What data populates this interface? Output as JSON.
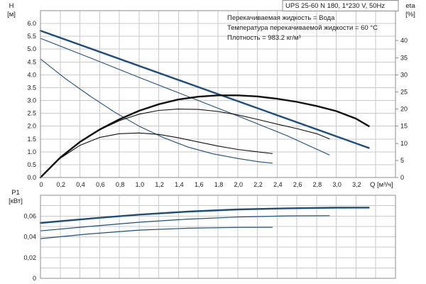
{
  "colors": {
    "head": "#1f4e79",
    "eta": "#111111",
    "power": "#1f4e79",
    "grid": "#c9c9c9",
    "frame": "#8c8c8c"
  },
  "title": "UPS 25-60 N 180, 1*230 V, 50Hz",
  "info_lines": [
    "Перекачиваемая жидкость = Вода",
    "Температура перекачиваемой жидкости = 60 °C",
    "Плотность = 983.2 кг/м³"
  ],
  "chart_data": [
    {
      "type": "line",
      "y_label_line1": "H",
      "y_label_line2": "[м]",
      "y2_label_line1": "eta",
      "y2_label_line2": "[%]",
      "x_label": "Q [м³/ч]",
      "xlim": [
        0,
        3.6
      ],
      "ylim": [
        0,
        6.5
      ],
      "y2lim": [
        0,
        48.75
      ],
      "x_ticks": [
        "0",
        "0,2",
        "0,4",
        "0,6",
        "0,8",
        "1,0",
        "1,2",
        "1,4",
        "1,6",
        "1,8",
        "2,0",
        "2,2",
        "2,4",
        "2,6",
        "2,8",
        "3,0",
        "3,2"
      ],
      "y_ticks": [
        "0.0",
        "0.5",
        "1.0",
        "1.5",
        "2.0",
        "2.5",
        "3.0",
        "3.5",
        "4.0",
        "4.5",
        "5.0",
        "5.5",
        "6.0"
      ],
      "y2_ticks": [
        "0",
        "5",
        "10",
        "15",
        "20",
        "25",
        "30",
        "35",
        "40"
      ],
      "grid": true,
      "head_series": [
        {
          "x": [
            0,
            3.33
          ],
          "y": [
            5.72,
            1.15
          ]
        },
        {
          "x": [
            0,
            0.5,
            1.0,
            1.5,
            2.0,
            2.5,
            2.93
          ],
          "y": [
            5.42,
            4.67,
            3.9,
            3.15,
            2.4,
            1.63,
            0.88
          ]
        },
        {
          "x": [
            0,
            0.25,
            0.5,
            0.75,
            1.0,
            1.25,
            1.5,
            1.75,
            2.0,
            2.2,
            2.35
          ],
          "y": [
            4.62,
            3.86,
            3.18,
            2.55,
            2.0,
            1.55,
            1.18,
            0.92,
            0.74,
            0.62,
            0.56
          ]
        }
      ],
      "eta_series": [
        {
          "x": [
            0,
            0.2,
            0.4,
            0.6,
            0.8,
            1.0,
            1.2,
            1.4,
            1.6,
            1.8,
            2.0,
            2.2,
            2.4,
            2.6,
            2.8,
            3.0,
            3.2,
            3.33
          ],
          "y": [
            0,
            5.8,
            10.4,
            14.0,
            17.0,
            19.5,
            21.4,
            22.8,
            23.6,
            24.0,
            24.0,
            23.7,
            23.0,
            22.1,
            20.9,
            19.4,
            17.2,
            15.0
          ]
        },
        {
          "x": [
            0,
            0.2,
            0.4,
            0.6,
            0.8,
            1.0,
            1.2,
            1.4,
            1.6,
            1.8,
            2.0,
            2.2,
            2.4,
            2.6,
            2.8,
            2.93
          ],
          "y": [
            0,
            5.9,
            10.4,
            13.9,
            16.6,
            18.5,
            19.6,
            20.0,
            19.9,
            19.3,
            18.3,
            17.0,
            15.6,
            14.3,
            12.8,
            11.3
          ]
        },
        {
          "x": [
            0,
            0.2,
            0.4,
            0.6,
            0.8,
            1.0,
            1.2,
            1.4,
            1.6,
            1.8,
            2.0,
            2.2,
            2.35
          ],
          "y": [
            0,
            5.6,
            9.4,
            11.7,
            12.8,
            13.0,
            12.6,
            11.6,
            10.4,
            9.2,
            8.2,
            7.5,
            7.0
          ]
        }
      ]
    },
    {
      "type": "line",
      "y_label_line1": "P1",
      "y_label_line2": "[кВт]",
      "xlim": [
        0,
        3.6
      ],
      "ylim": [
        0,
        0.08
      ],
      "y_ticks": [
        "0,06",
        "0,04",
        "0,02",
        "0"
      ],
      "grid": true,
      "series": [
        {
          "x": [
            0,
            0.5,
            1.0,
            1.5,
            2.0,
            2.5,
            3.0,
            3.33
          ],
          "y": [
            0.0533,
            0.0575,
            0.0613,
            0.0643,
            0.0663,
            0.0674,
            0.068,
            0.0681
          ]
        },
        {
          "x": [
            0,
            0.5,
            1.0,
            1.5,
            2.0,
            2.5,
            2.93
          ],
          "y": [
            0.0457,
            0.05,
            0.054,
            0.057,
            0.059,
            0.0601,
            0.0603
          ]
        },
        {
          "x": [
            0,
            0.5,
            1.0,
            1.5,
            2.0,
            2.35
          ],
          "y": [
            0.0382,
            0.0428,
            0.0464,
            0.0483,
            0.049,
            0.0491
          ]
        }
      ]
    }
  ]
}
